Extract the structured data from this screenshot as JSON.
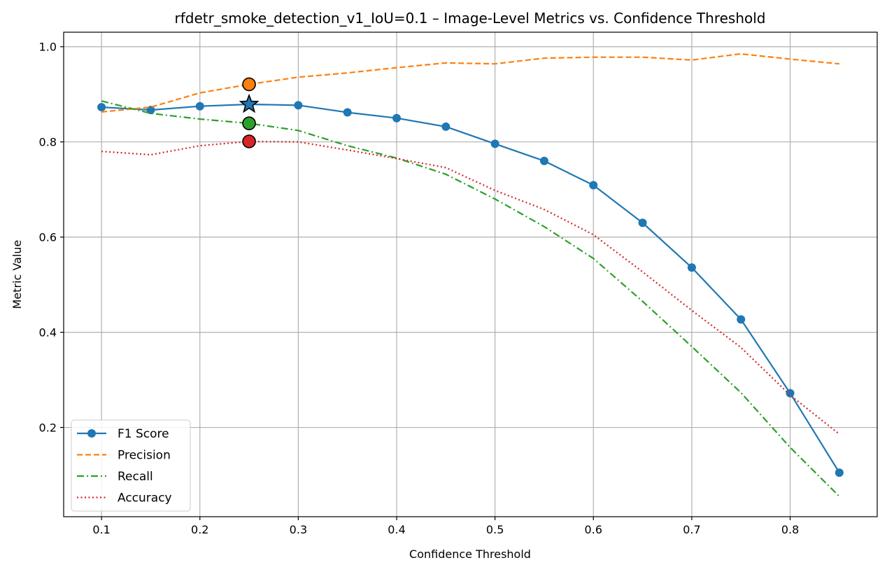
{
  "chart_data": {
    "type": "line",
    "title": "rfdetr_smoke_detection_v1_IoU=0.1 – Image-Level Metrics vs. Confidence Threshold",
    "xlabel": "Confidence Threshold",
    "ylabel": "Metric Value",
    "xlim": [
      0.0615,
      0.8885
    ],
    "ylim": [
      0.0125,
      1.0305
    ],
    "x_ticks": [
      0.1,
      0.2,
      0.3,
      0.4,
      0.5,
      0.6,
      0.7,
      0.8
    ],
    "x_tick_labels": [
      "0.1",
      "0.2",
      "0.3",
      "0.4",
      "0.5",
      "0.6",
      "0.7",
      "0.8"
    ],
    "y_ticks": [
      0.2,
      0.4,
      0.6,
      0.8,
      1.0
    ],
    "y_tick_labels": [
      "0.2",
      "0.4",
      "0.6",
      "0.8",
      "1.0"
    ],
    "grid": true,
    "legend_position": "lower-left",
    "x": [
      0.1,
      0.15,
      0.2,
      0.25,
      0.3,
      0.35,
      0.4,
      0.45,
      0.5,
      0.55,
      0.6,
      0.65,
      0.7,
      0.75,
      0.8,
      0.85
    ],
    "series": [
      {
        "name": "F1 Score",
        "color": "#1f77b4",
        "line_style": "solid",
        "marker": "circle",
        "values": [
          0.873,
          0.867,
          0.875,
          0.879,
          0.877,
          0.862,
          0.85,
          0.832,
          0.796,
          0.76,
          0.709,
          0.63,
          0.536,
          0.427,
          0.272,
          0.105
        ]
      },
      {
        "name": "Precision",
        "color": "#ff7f0e",
        "line_style": "dashed",
        "marker": "none",
        "values": [
          0.863,
          0.873,
          0.903,
          0.921,
          0.936,
          0.945,
          0.956,
          0.966,
          0.964,
          0.976,
          0.978,
          0.978,
          0.972,
          0.985,
          0.974,
          0.964
        ]
      },
      {
        "name": "Recall",
        "color": "#2ca02c",
        "line_style": "dashdot",
        "marker": "none",
        "values": [
          0.886,
          0.86,
          0.848,
          0.839,
          0.824,
          0.792,
          0.766,
          0.732,
          0.68,
          0.622,
          0.555,
          0.465,
          0.37,
          0.273,
          0.158,
          0.055
        ]
      },
      {
        "name": "Accuracy",
        "color": "#d62728",
        "line_style": "dotted",
        "marker": "none",
        "values": [
          0.78,
          0.773,
          0.792,
          0.801,
          0.8,
          0.783,
          0.765,
          0.746,
          0.698,
          0.658,
          0.605,
          0.527,
          0.446,
          0.368,
          0.268,
          0.186
        ]
      }
    ],
    "highlight": {
      "x": 0.25,
      "points": [
        {
          "series": "F1 Score",
          "value": 0.879,
          "marker": "star",
          "color": "#1f77b4"
        },
        {
          "series": "Precision",
          "value": 0.921,
          "marker": "circle",
          "color": "#ff7f0e"
        },
        {
          "series": "Recall",
          "value": 0.839,
          "marker": "circle",
          "color": "#2ca02c"
        },
        {
          "series": "Accuracy",
          "value": 0.801,
          "marker": "circle",
          "color": "#d62728"
        }
      ]
    }
  }
}
